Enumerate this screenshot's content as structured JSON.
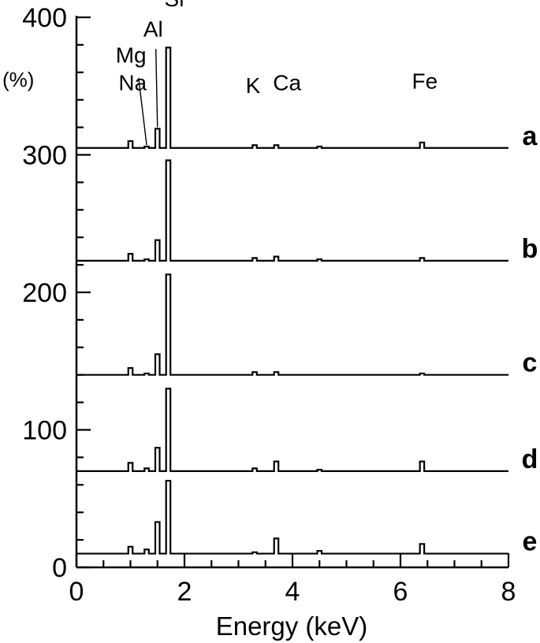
{
  "chart_data": {
    "type": "line",
    "xlabel": "Energy (keV)",
    "ylabel_unit": "(%)",
    "xlim": [
      0,
      8
    ],
    "ylim": [
      0,
      400
    ],
    "x_ticks": [
      "0",
      "2",
      "4",
      "6",
      "8"
    ],
    "y_ticks": [
      "0",
      "100",
      "200",
      "300",
      "400"
    ],
    "x_minor_step": 0.5,
    "y_minor_step": 20,
    "grid": false,
    "peak_energies_keV": [
      1.0,
      1.3,
      1.5,
      1.7,
      3.3,
      3.7,
      4.5,
      6.4
    ],
    "element_labels": [
      {
        "text": "Na",
        "x": 1.04,
        "y": 347
      },
      {
        "text": "Mg",
        "x": 1.01,
        "y": 367
      },
      {
        "text": "Al",
        "x": 1.42,
        "y": 386
      },
      {
        "text": "Si",
        "x": 1.81,
        "y": 408
      },
      {
        "text": "K",
        "x": 3.27,
        "y": 345
      },
      {
        "text": "Ca",
        "x": 3.9,
        "y": 347
      },
      {
        "text": "Fe",
        "x": 6.45,
        "y": 348
      }
    ],
    "series": [
      {
        "name": "a",
        "baseline": 305,
        "values": [
          310,
          306,
          319,
          378,
          307,
          307,
          306,
          309
        ]
      },
      {
        "name": "b",
        "baseline": 223,
        "values": [
          228,
          224,
          238,
          296,
          225,
          226,
          224,
          225
        ]
      },
      {
        "name": "c",
        "baseline": 140,
        "values": [
          145,
          141,
          155,
          213,
          142,
          142,
          140,
          141
        ]
      },
      {
        "name": "d",
        "baseline": 70,
        "values": [
          76,
          72,
          87,
          130,
          72,
          77,
          71,
          77
        ]
      },
      {
        "name": "e",
        "baseline": 10,
        "values": [
          15,
          13,
          33,
          63,
          11,
          21,
          12,
          17
        ]
      }
    ]
  }
}
